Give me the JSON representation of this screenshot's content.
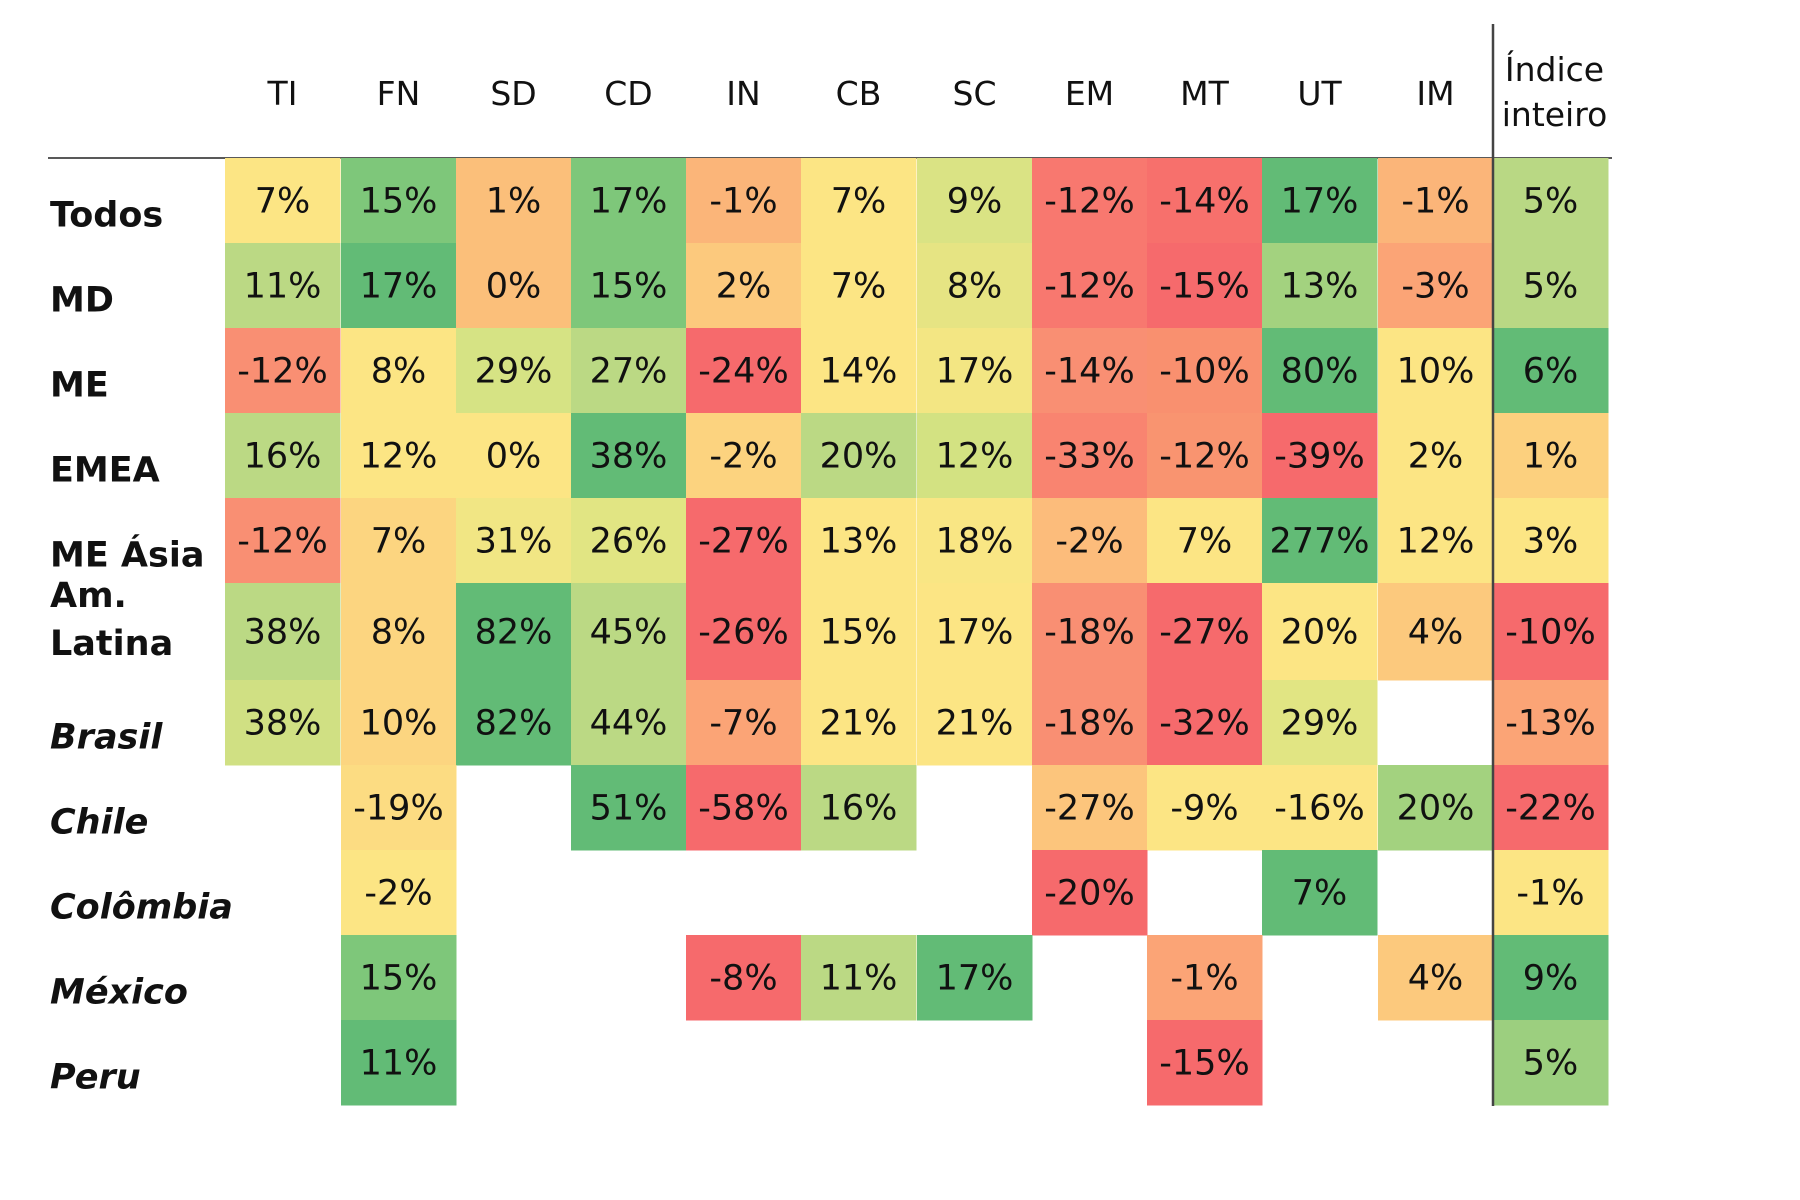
{
  "chart_data": {
    "type": "heatmap",
    "columns": [
      "TI",
      "FN",
      "SD",
      "CD",
      "IN",
      "CB",
      "SC",
      "EM",
      "MT",
      "UT",
      "IM"
    ],
    "index_column": [
      "Índice",
      "inteiro"
    ],
    "rows": [
      {
        "label": [
          "Todos"
        ],
        "italic": false,
        "values": [
          "7%",
          "15%",
          "1%",
          "17%",
          "-1%",
          "7%",
          "9%",
          "-12%",
          "-14%",
          "17%",
          "-1%"
        ],
        "index": "5%"
      },
      {
        "label": [
          "MD"
        ],
        "italic": false,
        "values": [
          "11%",
          "17%",
          "0%",
          "15%",
          "2%",
          "7%",
          "8%",
          "-12%",
          "-15%",
          "13%",
          "-3%"
        ],
        "index": "5%"
      },
      {
        "label": [
          "ME"
        ],
        "italic": false,
        "values": [
          "-12%",
          "8%",
          "29%",
          "27%",
          "-24%",
          "14%",
          "17%",
          "-14%",
          "-10%",
          "80%",
          "10%"
        ],
        "index": "6%"
      },
      {
        "label": [
          "EMEA"
        ],
        "italic": false,
        "values": [
          "16%",
          "12%",
          "0%",
          "38%",
          "-2%",
          "20%",
          "12%",
          "-33%",
          "-12%",
          "-39%",
          "2%"
        ],
        "index": "1%"
      },
      {
        "label": [
          "ME Ásia"
        ],
        "italic": false,
        "values": [
          "-12%",
          "7%",
          "31%",
          "26%",
          "-27%",
          "13%",
          "18%",
          "-2%",
          "7%",
          "277%",
          "12%"
        ],
        "index": "3%"
      },
      {
        "label": [
          "Am.",
          "Latina"
        ],
        "italic": false,
        "values": [
          "38%",
          "8%",
          "82%",
          "45%",
          "-26%",
          "15%",
          "17%",
          "-18%",
          "-27%",
          "20%",
          "4%"
        ],
        "index": "-10%"
      },
      {
        "label": [
          "Brasil"
        ],
        "italic": true,
        "values": [
          "38%",
          "10%",
          "82%",
          "44%",
          "-7%",
          "21%",
          "21%",
          "-18%",
          "-32%",
          "29%",
          null
        ],
        "index": "-13%"
      },
      {
        "label": [
          "Chile"
        ],
        "italic": true,
        "values": [
          null,
          "-19%",
          null,
          "51%",
          "-58%",
          "16%",
          null,
          "-27%",
          "-9%",
          "-16%",
          "20%"
        ],
        "index": "-22%"
      },
      {
        "label": [
          "Colômbia"
        ],
        "italic": true,
        "values": [
          null,
          "-2%",
          null,
          null,
          null,
          null,
          null,
          "-20%",
          null,
          "7%",
          null
        ],
        "index": "-1%"
      },
      {
        "label": [
          "México"
        ],
        "italic": true,
        "values": [
          null,
          "15%",
          null,
          null,
          "-8%",
          "11%",
          "17%",
          null,
          "-1%",
          null,
          "4%"
        ],
        "index": "9%"
      },
      {
        "label": [
          "Peru"
        ],
        "italic": true,
        "values": [
          null,
          "11%",
          null,
          null,
          null,
          null,
          null,
          null,
          "-15%",
          null,
          null
        ],
        "index": "5%"
      }
    ],
    "cell_colors": [
      [
        "#fce584",
        "#7ec77a",
        "#fbbf7a",
        "#7ec77a",
        "#fbb579",
        "#fce584",
        "#dae384",
        "#f8786f",
        "#f7706c",
        "#62bb76",
        "#fbb579",
        "#b9d884"
      ],
      [
        "#bbd984",
        "#62bb76",
        "#fbbf7a",
        "#7ec77a",
        "#fcc97d",
        "#fce584",
        "#e6e483",
        "#f8786f",
        "#f66a6c",
        "#a3d27f",
        "#fba476",
        "#b9d884"
      ],
      [
        "#f98f73",
        "#fce584",
        "#d6e384",
        "#bbd984",
        "#f66a6c",
        "#fce584",
        "#f3e683",
        "#f98f73",
        "#f9906f",
        "#62bb76",
        "#fce584",
        "#62bb76"
      ],
      [
        "#bbd984",
        "#fce584",
        "#fce584",
        "#62bb76",
        "#fcd37f",
        "#bbd984",
        "#d3e282",
        "#f98470",
        "#f99470",
        "#f66a6c",
        "#fce584",
        "#fcd07e"
      ],
      [
        "#f98f73",
        "#fcd580",
        "#f1e684",
        "#e1e583",
        "#f66a6c",
        "#fce584",
        "#f9e684",
        "#fcbc7b",
        "#fce584",
        "#62bb76",
        "#fce584",
        "#fce584"
      ],
      [
        "#bbd984",
        "#fcd580",
        "#62bb76",
        "#bbd984",
        "#f66a6c",
        "#fce584",
        "#fce584",
        "#f98f73",
        "#f66a6c",
        "#fce584",
        "#fcc97d",
        "#f66a6c"
      ],
      [
        "#d0e083",
        "#fcd580",
        "#62bb76",
        "#bbd984",
        "#fba476",
        "#fce584",
        "#fce584",
        "#f98f73",
        "#f66a6c",
        "#e1e583",
        null,
        "#fba476"
      ],
      [
        null,
        "#fcdc82",
        null,
        "#62bb76",
        "#f66a6c",
        "#bbd984",
        null,
        "#fcc57c",
        "#fce584",
        "#fce584",
        "#a3d27f",
        "#f66a6c"
      ],
      [
        null,
        "#fce584",
        null,
        null,
        null,
        null,
        null,
        "#f66a6c",
        null,
        "#62bb76",
        null,
        "#fce584"
      ],
      [
        null,
        "#7ec77a",
        null,
        null,
        "#f66a6c",
        "#bbd984",
        "#62bb76",
        null,
        "#fba476",
        null,
        "#fcc97d",
        "#62bb76"
      ],
      [
        null,
        "#62bb76",
        null,
        null,
        null,
        null,
        null,
        null,
        "#f66a6c",
        null,
        null,
        "#9ccf7f"
      ]
    ]
  }
}
